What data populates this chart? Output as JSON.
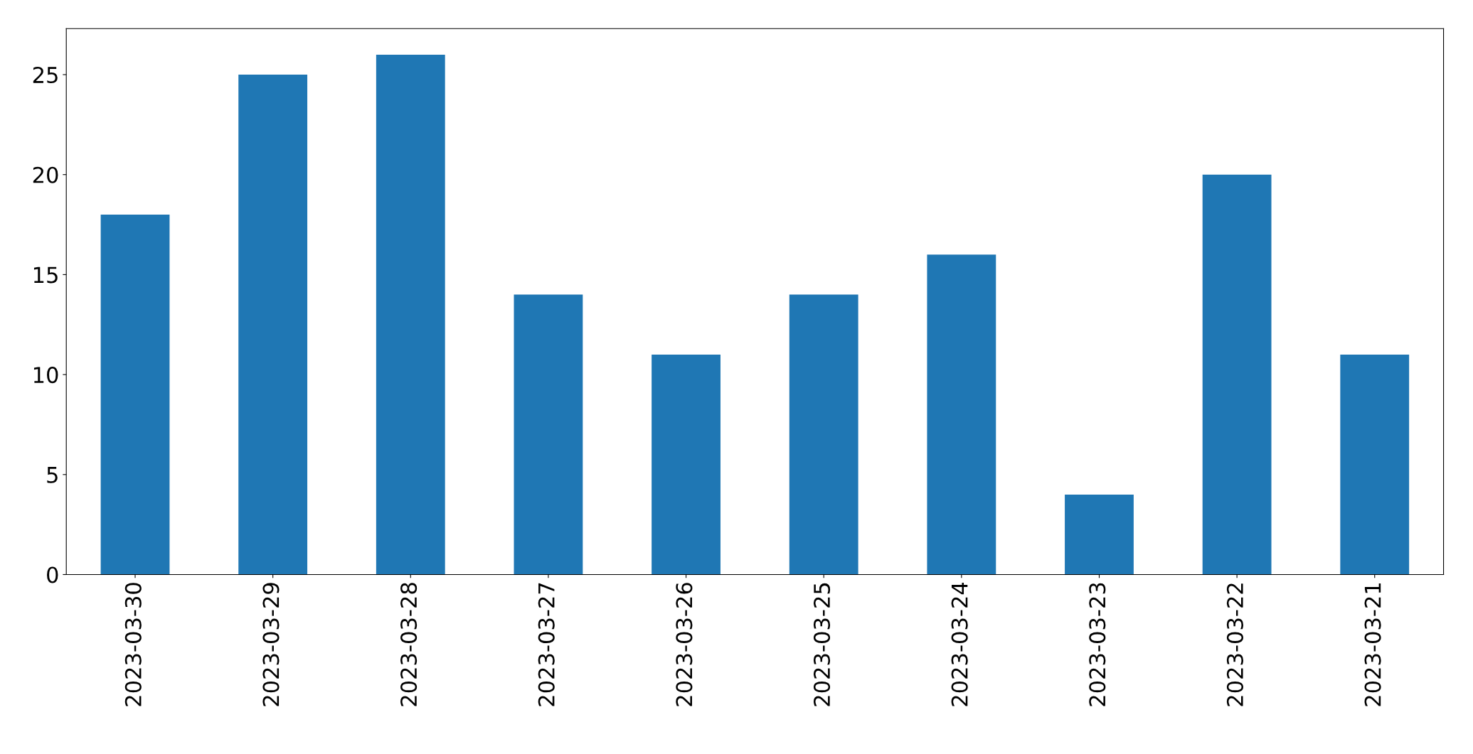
{
  "chart_data": {
    "type": "bar",
    "categories": [
      "2023-03-30",
      "2023-03-29",
      "2023-03-28",
      "2023-03-27",
      "2023-03-26",
      "2023-03-25",
      "2023-03-24",
      "2023-03-23",
      "2023-03-22",
      "2023-03-21"
    ],
    "values": [
      18,
      25,
      26,
      14,
      11,
      14,
      16,
      4,
      20,
      11
    ],
    "color": "#1f77b4",
    "ylim": [
      0,
      27.3
    ],
    "yticks": [
      0,
      5,
      10,
      15,
      20,
      25
    ],
    "grid": false,
    "legend": false
  }
}
